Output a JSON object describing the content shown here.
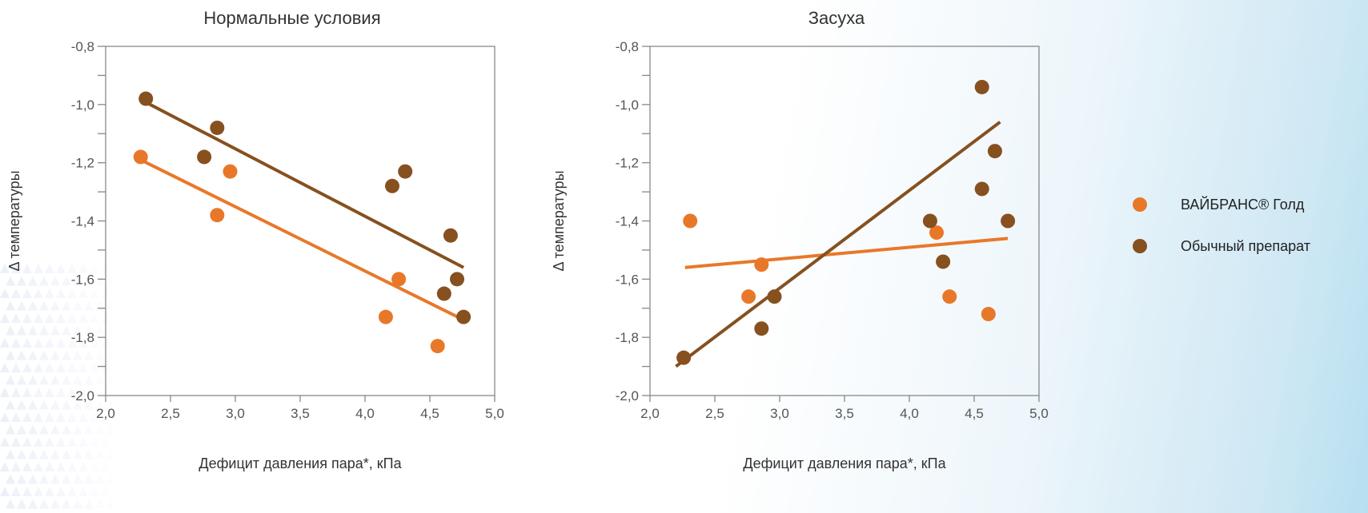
{
  "colors": {
    "gold": "#e87829",
    "standard": "#86501f",
    "axis": "#888888"
  },
  "legend": [
    {
      "label": "ВАЙБРАНС® Голд",
      "color": "#e87829"
    },
    {
      "label": "Обычный препарат",
      "color": "#86501f"
    }
  ],
  "chart_data": [
    {
      "type": "scatter",
      "title": "Нормальные условия",
      "xlabel": "Дефицит давления пара*, кПа",
      "ylabel": "Δ температуры",
      "xlim": [
        2.0,
        5.0
      ],
      "ylim": [
        -2.0,
        -0.8
      ],
      "xticks": [
        "2,0",
        "2,5",
        "3,0",
        "3,5",
        "4,0",
        "4,5",
        "5,0"
      ],
      "yticks": [
        "-2,0",
        "-1,8",
        "-1,6",
        "-1,4",
        "-1,2",
        "-1,0",
        "-0,8"
      ],
      "series": [
        {
          "name": "ВАЙБРАНС® Голд",
          "points": [
            [
              2.27,
              -1.18
            ],
            [
              2.96,
              -1.23
            ],
            [
              2.86,
              -1.38
            ],
            [
              4.26,
              -1.6
            ],
            [
              4.16,
              -1.73
            ],
            [
              4.56,
              -1.83
            ]
          ],
          "trend": [
            [
              2.27,
              -1.19
            ],
            [
              4.76,
              -1.74
            ]
          ]
        },
        {
          "name": "Обычный препарат",
          "points": [
            [
              2.31,
              -0.98
            ],
            [
              2.86,
              -1.08
            ],
            [
              2.76,
              -1.18
            ],
            [
              4.21,
              -1.28
            ],
            [
              4.31,
              -1.23
            ],
            [
              4.66,
              -1.45
            ],
            [
              4.71,
              -1.6
            ],
            [
              4.61,
              -1.65
            ],
            [
              4.76,
              -1.73
            ]
          ],
          "trend": [
            [
              2.3,
              -0.99
            ],
            [
              4.76,
              -1.56
            ]
          ]
        }
      ]
    },
    {
      "type": "scatter",
      "title": "Засуха",
      "xlabel": "Дефицит давления пара*, кПа",
      "ylabel": "Δ температуры",
      "xlim": [
        2.0,
        5.0
      ],
      "ylim": [
        -2.0,
        -0.8
      ],
      "xticks": [
        "2,0",
        "2,5",
        "3,0",
        "3,5",
        "4,0",
        "4,5",
        "5,0"
      ],
      "yticks": [
        "-2,0",
        "-1,8",
        "-1,6",
        "-1,4",
        "-1,2",
        "-1,0",
        "-0,8"
      ],
      "series": [
        {
          "name": "ВАЙБРАНС® Голд",
          "points": [
            [
              2.31,
              -1.4
            ],
            [
              2.86,
              -1.55
            ],
            [
              2.76,
              -1.66
            ],
            [
              4.21,
              -1.44
            ],
            [
              4.31,
              -1.66
            ],
            [
              4.61,
              -1.72
            ]
          ],
          "trend": [
            [
              2.27,
              -1.56
            ],
            [
              4.76,
              -1.46
            ]
          ]
        },
        {
          "name": "Обычный препарат",
          "points": [
            [
              2.26,
              -1.87
            ],
            [
              2.86,
              -1.77
            ],
            [
              2.96,
              -1.66
            ],
            [
              4.16,
              -1.4
            ],
            [
              4.26,
              -1.54
            ],
            [
              4.56,
              -1.29
            ],
            [
              4.56,
              -0.94
            ],
            [
              4.66,
              -1.16
            ],
            [
              4.76,
              -1.4
            ]
          ],
          "trend": [
            [
              2.2,
              -1.9
            ],
            [
              4.7,
              -1.06
            ]
          ]
        }
      ]
    }
  ]
}
